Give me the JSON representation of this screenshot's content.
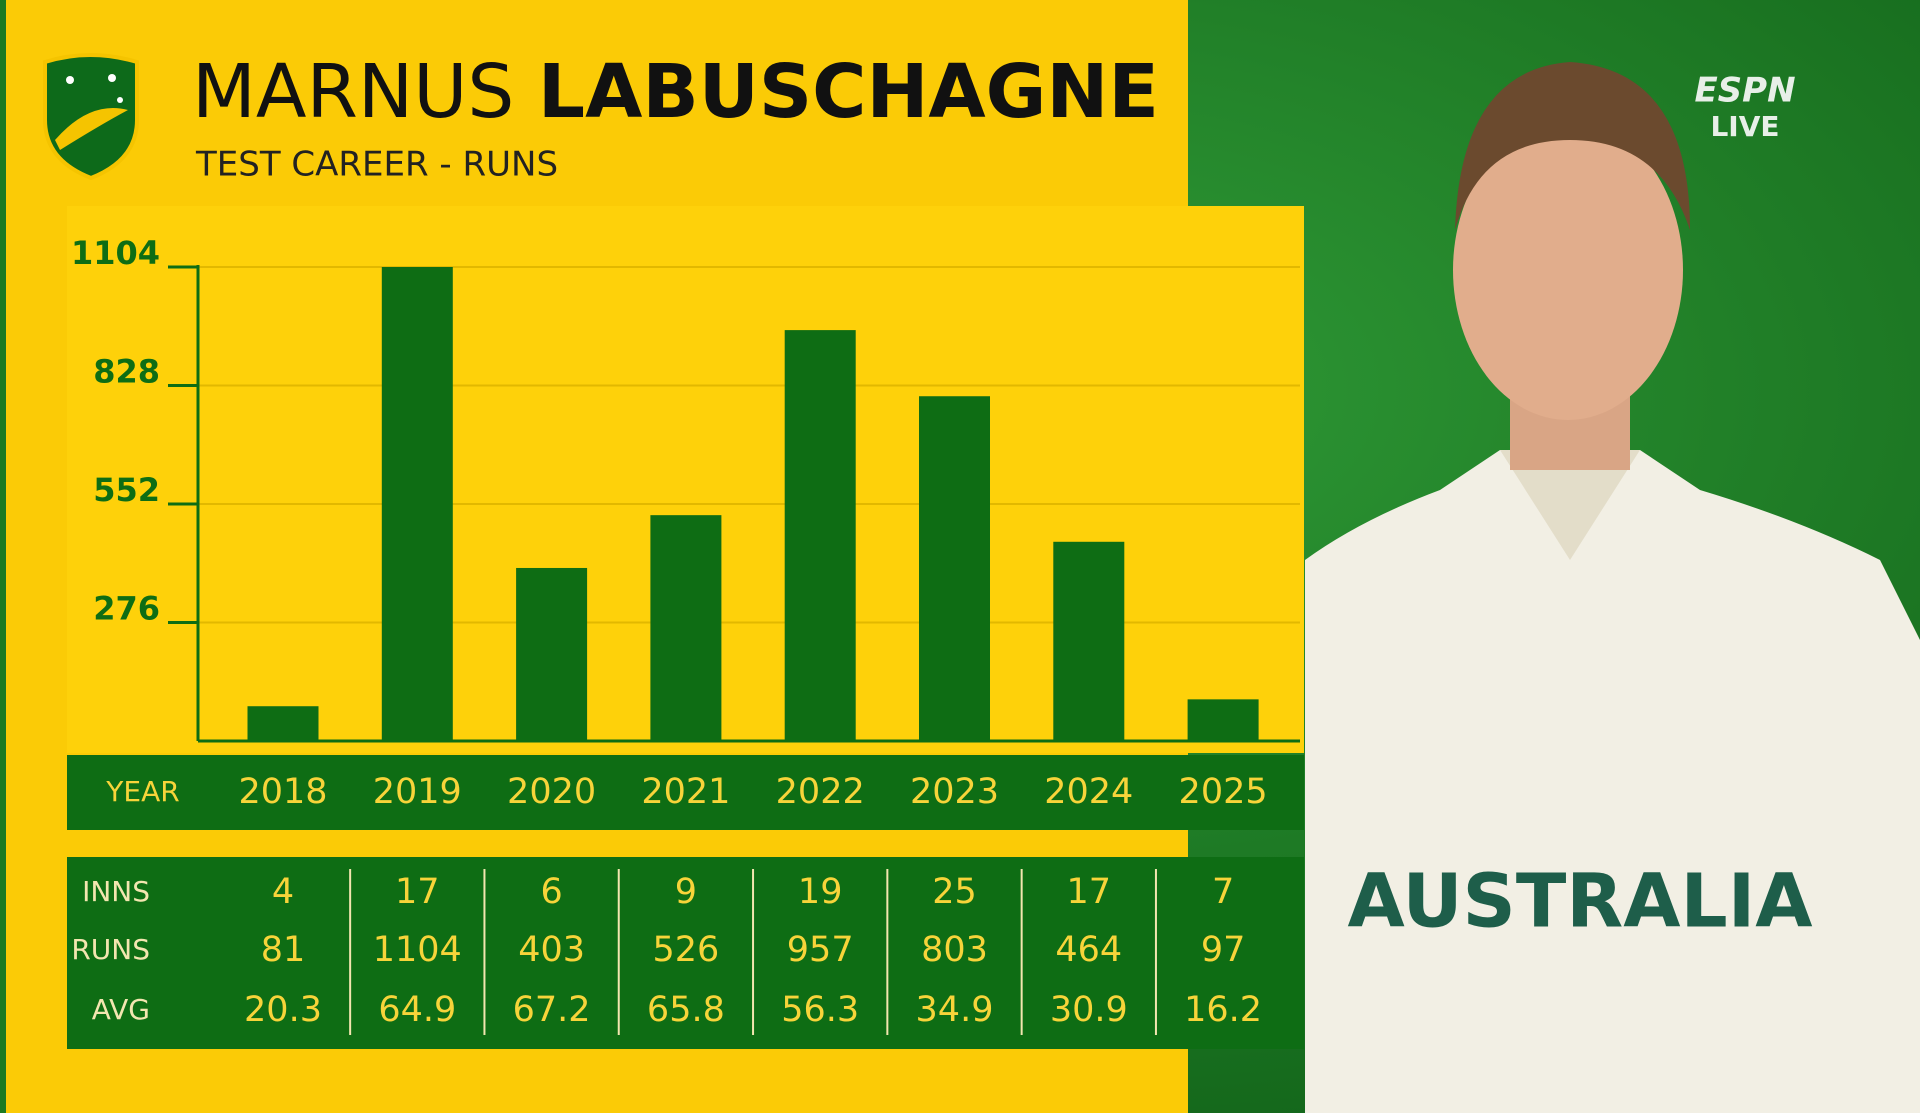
{
  "chart_data": {
    "type": "bar",
    "title": {
      "first": "MARNUS",
      "last": "LABUSCHAGNE"
    },
    "subtitle": "TEST CAREER - RUNS",
    "categories": [
      "2018",
      "2019",
      "2020",
      "2021",
      "2022",
      "2023",
      "2024",
      "2025"
    ],
    "values": [
      81,
      1104,
      403,
      526,
      957,
      803,
      464,
      97
    ],
    "color": "#0e6d14",
    "ylim": [
      0,
      1104
    ],
    "yticks": [
      276,
      552,
      828,
      1104
    ],
    "grid": true,
    "x_label": "YEAR",
    "values_label": "RUNS",
    "rows": [
      {
        "label": "INNS",
        "values": [
          4,
          17,
          6,
          9,
          19,
          25,
          17,
          7
        ]
      },
      {
        "label": "AVG",
        "values": [
          20.3,
          64.9,
          67.2,
          65.8,
          56.3,
          34.9,
          30.9,
          16.2
        ]
      }
    ],
    "broadcaster": "ESPN",
    "broadcast_status": "LIVE",
    "shirt_text": "AUSTRALIA"
  }
}
